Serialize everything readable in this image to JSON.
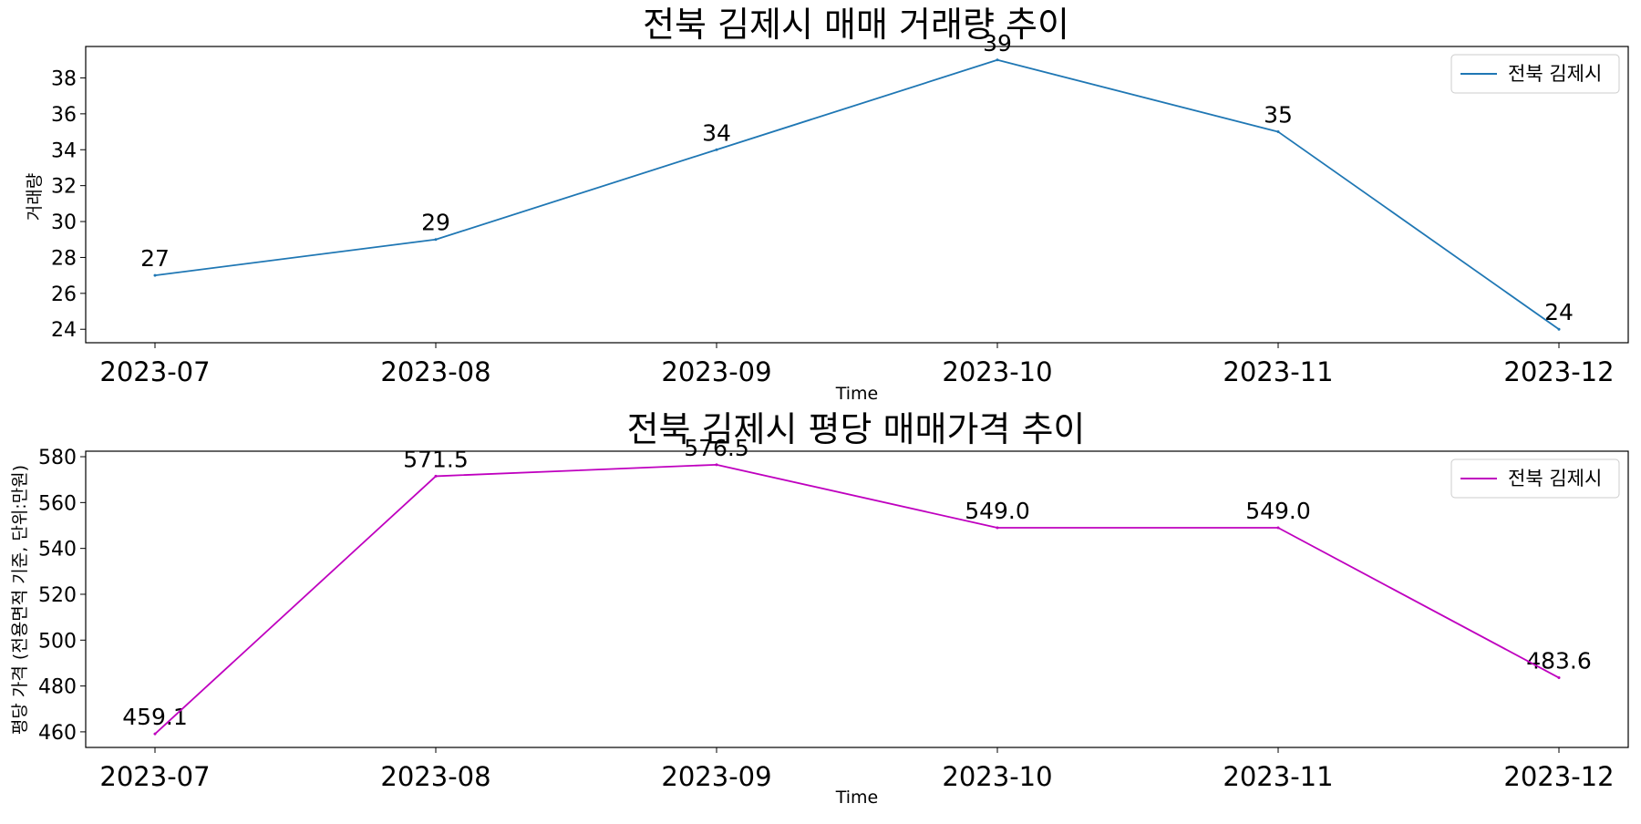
{
  "chart_data": [
    {
      "type": "line",
      "title": "전북 김제시 매매 거래량 추이",
      "xlabel": "Time",
      "ylabel": "거래량",
      "categories": [
        "2023-07",
        "2023-08",
        "2023-09",
        "2023-10",
        "2023-11",
        "2023-12"
      ],
      "series": [
        {
          "name": "전북 김제시",
          "values": [
            27,
            29,
            34,
            39,
            35,
            24
          ],
          "color": "#1f77b4"
        }
      ],
      "data_labels": [
        "27",
        "29",
        "34",
        "39",
        "35",
        "24"
      ],
      "ylim": [
        23.25,
        39.75
      ],
      "yticks": [
        24,
        26,
        28,
        30,
        32,
        34,
        36,
        38
      ],
      "ytick_labels": [
        "24",
        "26",
        "28",
        "30",
        "32",
        "34",
        "36",
        "38"
      ],
      "grid": false,
      "legend": "top-right"
    },
    {
      "type": "line",
      "title": "전북 김제시 평당 매매가격 추이",
      "xlabel": "Time",
      "ylabel": "평당 가격 (전용면적 기준, 단위:만원)",
      "categories": [
        "2023-07",
        "2023-08",
        "2023-09",
        "2023-10",
        "2023-11",
        "2023-12"
      ],
      "series": [
        {
          "name": "전북 김제시",
          "values": [
            459.1,
            571.5,
            576.5,
            549.0,
            549.0,
            483.6
          ],
          "color": "#bf00bf"
        }
      ],
      "data_labels": [
        "459.1",
        "571.5",
        "576.5",
        "549.0",
        "549.0",
        "483.6"
      ],
      "ylim": [
        453.2,
        582.4
      ],
      "yticks": [
        460,
        480,
        500,
        520,
        540,
        560,
        580
      ],
      "ytick_labels": [
        "460",
        "480",
        "500",
        "520",
        "540",
        "560",
        "580"
      ],
      "grid": false,
      "legend": "top-right"
    }
  ]
}
